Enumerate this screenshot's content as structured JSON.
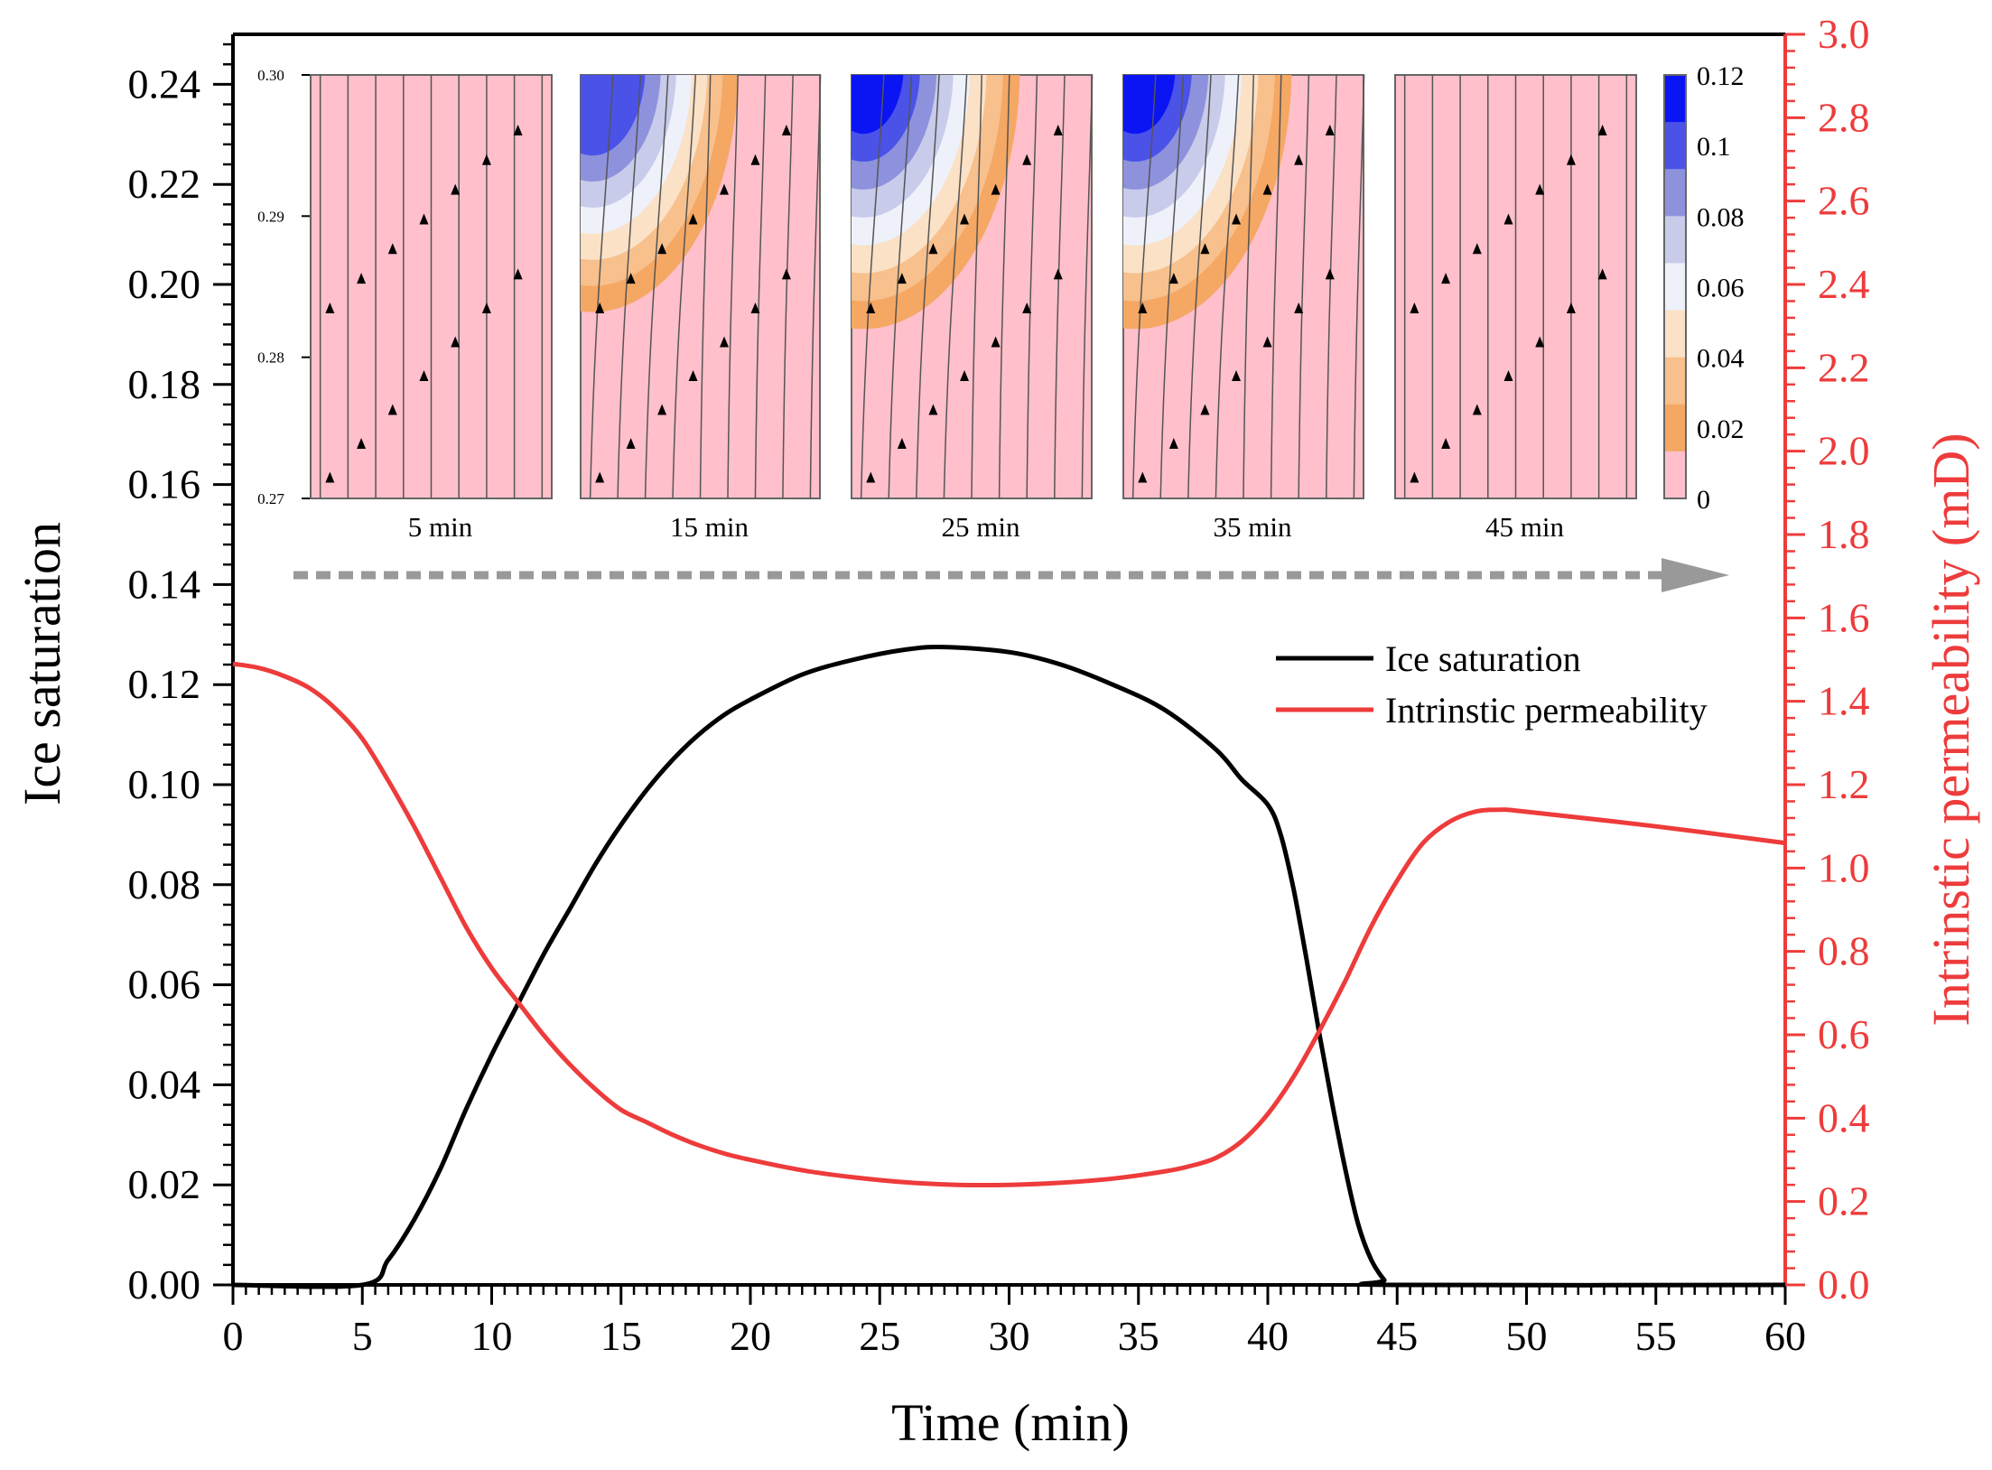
{
  "chart_data": {
    "type": "line",
    "xlabel": "Time (min)",
    "ylabel_left": "Ice saturation",
    "ylabel_right": "Intrinstic permeability (mD)",
    "xlim": [
      0,
      60
    ],
    "ylim_left": [
      0,
      0.25
    ],
    "ylim_right": [
      0,
      3.0
    ],
    "x_ticks": [
      0,
      5,
      10,
      15,
      20,
      25,
      30,
      35,
      40,
      45,
      50,
      55,
      60
    ],
    "y_left_ticks": [
      "0.00",
      "0.02",
      "0.04",
      "0.06",
      "0.08",
      "0.10",
      "0.12",
      "0.14",
      "0.16",
      "0.18",
      "0.20",
      "0.22",
      "0.24"
    ],
    "y_right_ticks": [
      "0.0",
      "0.2",
      "0.4",
      "0.6",
      "0.8",
      "1.0",
      "1.2",
      "1.4",
      "1.6",
      "1.8",
      "2.0",
      "2.2",
      "2.4",
      "2.6",
      "2.8",
      "3.0"
    ],
    "grid": false,
    "legend_position": "upper-right",
    "colors": {
      "ice": "#000000",
      "perm": "#ee3b3b",
      "right_axis": "#ee3b3b"
    },
    "series": [
      {
        "name": "Ice saturation",
        "axis": "left",
        "x": [
          0,
          5,
          6,
          7,
          8,
          9,
          10,
          11,
          12,
          13,
          14,
          15,
          16,
          17,
          18,
          19,
          20,
          22,
          24,
          26,
          27.5,
          30,
          32,
          34,
          36,
          38,
          39,
          40,
          40.5,
          41,
          41.5,
          42,
          42.5,
          43,
          43.5,
          44,
          44.5,
          44.8,
          60
        ],
        "y": [
          0,
          0,
          0.005,
          0.013,
          0.023,
          0.035,
          0.046,
          0.056,
          0.066,
          0.075,
          0.084,
          0.092,
          0.099,
          0.105,
          0.11,
          0.114,
          0.117,
          0.122,
          0.125,
          0.127,
          0.1275,
          0.1265,
          0.124,
          0.12,
          0.115,
          0.107,
          0.101,
          0.096,
          0.09,
          0.079,
          0.065,
          0.05,
          0.036,
          0.023,
          0.012,
          0.005,
          0.001,
          0,
          0
        ]
      },
      {
        "name": "Intrinstic permeability",
        "axis": "right",
        "x": [
          0,
          1,
          2,
          3,
          4,
          5,
          6,
          7,
          8,
          9,
          10,
          11,
          12,
          13,
          14,
          15,
          16,
          17,
          18,
          19,
          20,
          22,
          24,
          26,
          28,
          30,
          32,
          34,
          36,
          37,
          38,
          39,
          40,
          41,
          42,
          43,
          44,
          45,
          46,
          47,
          48,
          49,
          50,
          55,
          60
        ],
        "y": [
          1.49,
          1.48,
          1.46,
          1.43,
          1.38,
          1.31,
          1.21,
          1.1,
          0.98,
          0.86,
          0.76,
          0.68,
          0.6,
          0.53,
          0.47,
          0.42,
          0.39,
          0.36,
          0.335,
          0.315,
          0.3,
          0.275,
          0.258,
          0.246,
          0.24,
          0.24,
          0.245,
          0.255,
          0.272,
          0.285,
          0.305,
          0.345,
          0.41,
          0.5,
          0.61,
          0.73,
          0.86,
          0.97,
          1.06,
          1.11,
          1.135,
          1.14,
          1.135,
          1.1,
          1.06
        ]
      }
    ],
    "inset": {
      "panel_labels": [
        "5 min",
        "15 min",
        "25 min",
        "35 min",
        "45 min"
      ],
      "y_ticks": [
        "0.30",
        "0.29",
        "0.28",
        "0.27"
      ],
      "colorbar_labels": [
        "0.12",
        "0.1",
        "0.08",
        "0.06",
        "0.04",
        "0.02",
        "0"
      ],
      "colorbar_colors": [
        "#0b14f2",
        "#4a52e8",
        "#8e92dd",
        "#c9cbeb",
        "#eef1fa",
        "#fbe1c6",
        "#f7c08c",
        "#f5a764",
        "#ffc0cb"
      ],
      "background_color": "#ffc0cb",
      "arrow_color": "#999999",
      "max_levels": [
        0,
        0.1,
        0.12,
        0.12,
        0
      ]
    }
  }
}
